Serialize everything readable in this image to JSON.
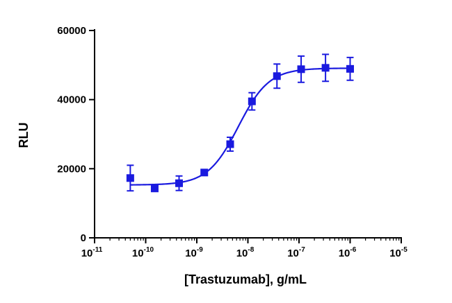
{
  "chart_data": {
    "type": "scatter",
    "title": "",
    "xlabel": "[Trastuzumab], g/mL",
    "ylabel": "RLU",
    "x_scale": "log",
    "xlim": [
      1e-11,
      1e-05
    ],
    "ylim": [
      0,
      60000
    ],
    "x_tick_labels": [
      {
        "base": "10",
        "exp": "-11"
      },
      {
        "base": "10",
        "exp": "-10"
      },
      {
        "base": "10",
        "exp": "-9"
      },
      {
        "base": "10",
        "exp": "-8"
      },
      {
        "base": "10",
        "exp": "-7"
      },
      {
        "base": "10",
        "exp": "-6"
      },
      {
        "base": "10",
        "exp": "-5"
      }
    ],
    "y_ticks": [
      0,
      20000,
      40000,
      60000
    ],
    "y_tick_labels": [
      "0",
      "20000",
      "40000",
      "60000"
    ],
    "grid": false,
    "legend": "none",
    "color": "#1a1adf",
    "series": [
      {
        "marker": "square",
        "x": [
          5e-11,
          1.5e-10,
          4.5e-10,
          1.4e-09,
          4.5e-09,
          1.2e-08,
          3.7e-08,
          1.1e-07,
          3.3e-07,
          1e-06
        ],
        "y": [
          17300,
          14300,
          15800,
          18900,
          27100,
          39500,
          46800,
          48800,
          49200,
          48900
        ],
        "err": [
          3700,
          600,
          2100,
          600,
          2000,
          2500,
          3500,
          3800,
          3900,
          3300
        ]
      }
    ],
    "fit": {
      "model": "4PL",
      "bottom": 15300,
      "top": 49100,
      "ec50": 6.5e-09,
      "hill": 1.45,
      "x_range": [
        5e-11,
        1e-06
      ]
    }
  }
}
